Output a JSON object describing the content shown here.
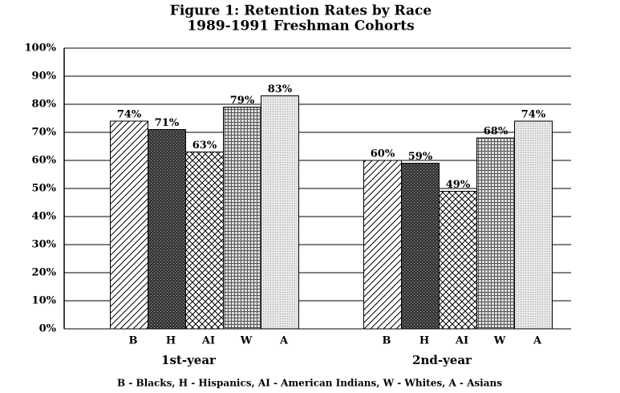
{
  "chart_data": {
    "type": "bar",
    "title": "Figure 1: Retention Rates by Race",
    "subtitle": "1989-1991 Freshman Cohorts",
    "categories": [
      "1st-year",
      "2nd-year"
    ],
    "series": [
      {
        "name": "B",
        "color": "#000000",
        "pattern": "diagonal",
        "values": [
          74,
          60
        ],
        "value_labels": [
          "74%",
          "60%"
        ]
      },
      {
        "name": "H",
        "color": "#3a3a3a",
        "pattern": "stipple",
        "values": [
          71,
          59
        ],
        "value_labels": [
          "71%",
          "59%"
        ]
      },
      {
        "name": "AI",
        "color": "#000000",
        "pattern": "crosshatch",
        "values": [
          63,
          49
        ],
        "value_labels": [
          "63%",
          "49%"
        ]
      },
      {
        "name": "W",
        "color": "#555555",
        "pattern": "grid",
        "values": [
          79,
          68
        ],
        "value_labels": [
          "79%",
          "68%"
        ]
      },
      {
        "name": "A",
        "color": "#aaaaaa",
        "pattern": "dots",
        "values": [
          83,
          74
        ],
        "value_labels": [
          "83%",
          "74%"
        ]
      }
    ],
    "ylim": [
      0,
      100
    ],
    "yticks": [
      {
        "value": 0,
        "label": "0%"
      },
      {
        "value": 10,
        "label": "10%"
      },
      {
        "value": 20,
        "label": "20%"
      },
      {
        "value": 30,
        "label": "30%"
      },
      {
        "value": 40,
        "label": "40%"
      },
      {
        "value": 50,
        "label": "50%"
      },
      {
        "value": 60,
        "label": "60%"
      },
      {
        "value": 70,
        "label": "70%"
      },
      {
        "value": 80,
        "label": "80%"
      },
      {
        "value": 90,
        "label": "90%"
      },
      {
        "value": 100,
        "label": "100%"
      }
    ],
    "grid": true,
    "note": "B - Blacks, H - Hispanics, AI - American Indians, W - Whites,  A - Asians"
  }
}
